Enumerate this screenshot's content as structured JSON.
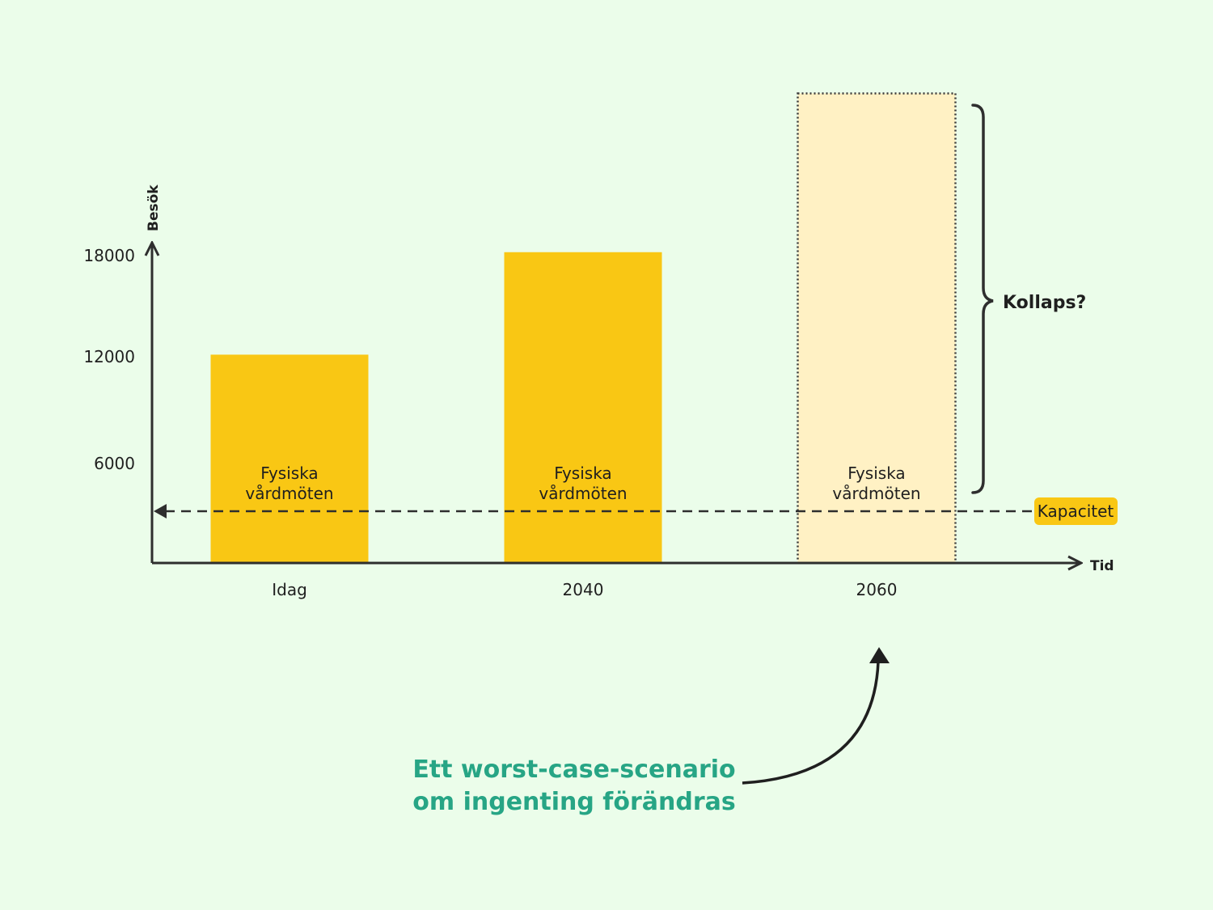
{
  "chart_data": {
    "type": "bar",
    "categories": [
      "Idag",
      "2040",
      "2060"
    ],
    "values": [
      12200,
      18200,
      27500
    ],
    "projected": [
      false,
      false,
      true
    ],
    "bar_labels": [
      [
        "Fysiska",
        "vårdmöten"
      ],
      [
        "Fysiska",
        "vårdmöten"
      ],
      [
        "Fysiska",
        "vårdmöten"
      ]
    ],
    "yticks": [
      6000,
      12000,
      18000
    ],
    "xlabel": "Tid",
    "ylabel": "Besök",
    "capacity": {
      "label": "Kapacitet",
      "value": 3100
    },
    "bracket_label": "Kollaps?",
    "colors": {
      "bar": "#f9c714",
      "projected": "#fff1c4",
      "capacity_badge": "#f9c714",
      "callout": "#27a585",
      "ink": "#2e2e2e"
    }
  },
  "callout": {
    "line1": "Ett worst-case-scenario",
    "line2": "om ingenting förändras"
  }
}
